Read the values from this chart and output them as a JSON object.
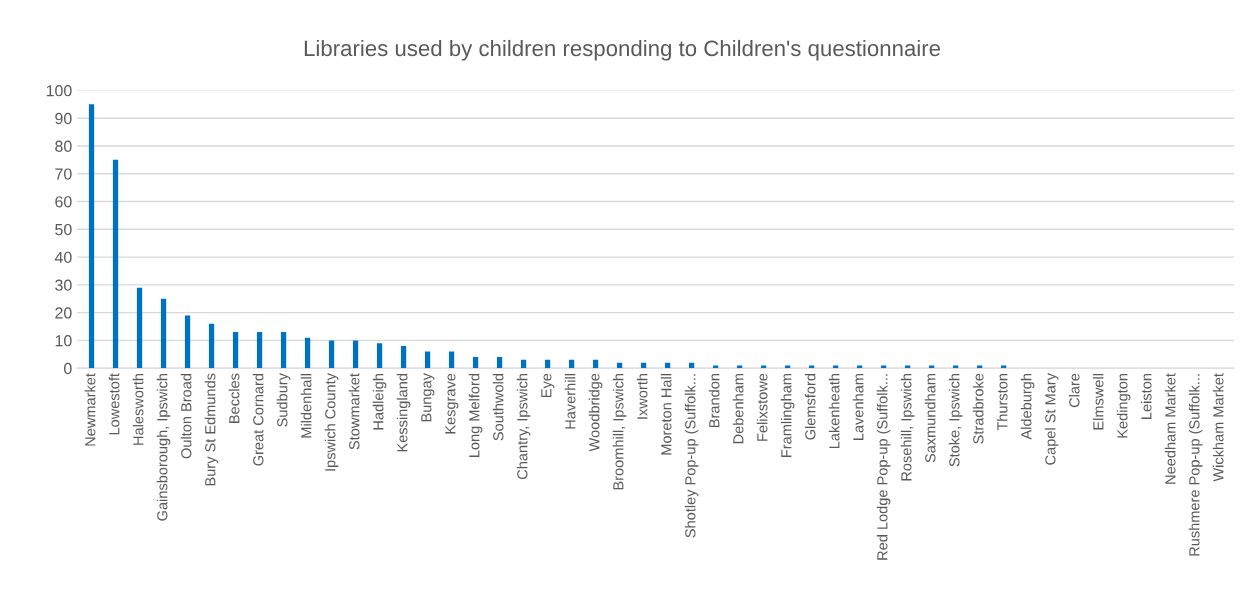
{
  "chart_data": {
    "type": "bar",
    "title": "Libraries used by children responding to Children's questionnaire",
    "categories": [
      "Newmarket",
      "Lowestoft",
      "Halesworth",
      "Gainsborough, Ipswich",
      "Oulton Broad",
      "Bury St Edmunds",
      "Beccles",
      "Great Cornard",
      "Sudbury",
      "Mildenhall",
      "Ipswich County",
      "Stowmarket",
      "Hadleigh",
      "Kessingland",
      "Bungay",
      "Kesgrave",
      "Long Melford",
      "Southwold",
      "Chantry, Ipswich",
      "Eye",
      "Haverhill",
      "Woodbridge",
      "Broomhill, Ipswich",
      "Ixworth",
      "Moreton Hall",
      "Shotley Pop-up (Suffolk...",
      "Brandon",
      "Debenham",
      "Felixstowe",
      "Framlingham",
      "Glemsford",
      "Lakenheath",
      "Lavenham",
      "Red Lodge Pop-up (Suffolk...",
      "Rosehill, Ipswich",
      "Saxmundham",
      "Stoke, Ipswich",
      "Stradbroke",
      "Thurston",
      "Aldeburgh",
      "Capel St Mary",
      "Clare",
      "Elmswell",
      "Kedington",
      "Leiston",
      "Needham Market",
      "Rushmere Pop-up (Suffolk...",
      "Wickham Market"
    ],
    "values": [
      95,
      75,
      29,
      25,
      19,
      16,
      13,
      13,
      13,
      11,
      10,
      10,
      9,
      8,
      6,
      6,
      4,
      4,
      3,
      3,
      3,
      3,
      2,
      2,
      2,
      2,
      1,
      1,
      1,
      1,
      1,
      1,
      1,
      1,
      1,
      1,
      1,
      1,
      1,
      0,
      0,
      0,
      0,
      0,
      0,
      0,
      0,
      0
    ],
    "color": "#0070c0",
    "ylim": [
      0,
      100
    ],
    "yticks": [
      0,
      10,
      20,
      30,
      40,
      50,
      60,
      70,
      80,
      90,
      100
    ],
    "grid": "y"
  }
}
